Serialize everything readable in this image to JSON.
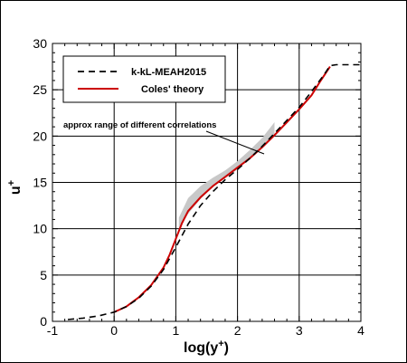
{
  "chart_data": {
    "type": "line",
    "xlabel": "log(y",
    "xlabel_sup": "+",
    "xlabel_close": ")",
    "ylabel": "u",
    "ylabel_sup": "+",
    "xlim": [
      -1,
      4
    ],
    "ylim": [
      0,
      30
    ],
    "xticks": [
      -1,
      0,
      1,
      2,
      3,
      4
    ],
    "yticks": [
      0,
      5,
      10,
      15,
      20,
      25,
      30
    ],
    "grid": true,
    "legend_placement": "top-left",
    "annotation": "approx range of different correlations",
    "series": [
      {
        "name": "k-kL-MEAH2015",
        "style": "dashed",
        "color": "#000000",
        "x": [
          -0.75,
          -0.5,
          -0.25,
          0.0,
          0.2,
          0.4,
          0.6,
          0.8,
          1.0,
          1.2,
          1.4,
          1.6,
          1.8,
          2.0,
          2.2,
          2.4,
          2.6,
          2.8,
          3.0,
          3.2,
          3.4,
          3.5,
          3.6,
          3.8,
          4.0
        ],
        "y": [
          0.2,
          0.35,
          0.6,
          1.0,
          1.6,
          2.5,
          3.8,
          5.6,
          8.0,
          10.5,
          12.5,
          14.0,
          15.3,
          16.4,
          17.6,
          18.9,
          20.3,
          21.7,
          23.1,
          24.8,
          26.6,
          27.6,
          27.7,
          27.7,
          27.7
        ]
      },
      {
        "name": "Coles' theory",
        "style": "solid",
        "color": "#cc0000",
        "x": [
          0.0,
          0.2,
          0.4,
          0.6,
          0.8,
          0.9,
          1.0,
          1.1,
          1.2,
          1.4,
          1.6,
          1.8,
          2.0,
          2.2,
          2.4,
          2.6,
          2.8,
          3.0,
          3.2,
          3.35,
          3.5
        ],
        "y": [
          1.0,
          1.6,
          2.6,
          3.9,
          5.8,
          7.2,
          8.9,
          10.6,
          11.9,
          13.4,
          14.6,
          15.6,
          16.6,
          17.6,
          18.8,
          20.1,
          21.5,
          22.9,
          24.4,
          26.0,
          27.5
        ]
      }
    ],
    "band": {
      "x": [
        1.05,
        1.2,
        1.4,
        1.6,
        1.8,
        2.0,
        2.2,
        2.4,
        2.6
      ],
      "lower": [
        10.0,
        11.6,
        13.2,
        14.5,
        15.5,
        16.4,
        17.6,
        18.8,
        20.1
      ],
      "upper": [
        11.2,
        13.3,
        14.6,
        15.5,
        16.3,
        17.3,
        18.5,
        19.8,
        21.5
      ]
    }
  }
}
